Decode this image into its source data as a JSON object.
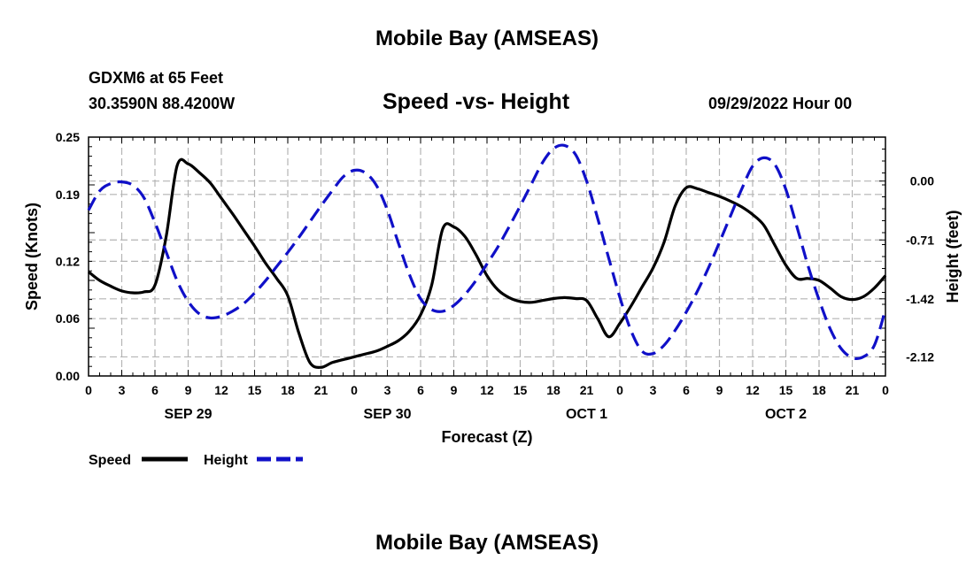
{
  "page": {
    "title": "Mobile Bay (AMSEAS)",
    "title_repeat": "Mobile Bay (AMSEAS)",
    "station": "GDXM6 at 65 Feet",
    "coordinates": "30.3590N  88.4200W",
    "subtitle": "Speed -vs- Height",
    "datetime": "09/29/2022 Hour 00"
  },
  "colors": {
    "speed": "#000000",
    "height": "#1010c8",
    "grid": "#b4b4b4"
  },
  "chart_data": {
    "type": "line",
    "xlabel": "Forecast (Z)",
    "ylabel": "Speed (Knots)",
    "y2label": "Height (feet)",
    "xlim": [
      0,
      72
    ],
    "ylim": [
      0,
      0.25
    ],
    "y2lim": [
      -2.35,
      0.53
    ],
    "x_ticks": [
      0,
      3,
      6,
      9,
      12,
      15,
      18,
      21,
      24,
      27,
      30,
      33,
      36,
      39,
      42,
      45,
      48,
      51,
      54,
      57,
      60,
      63,
      66,
      69,
      72
    ],
    "x_tick_labels": [
      "0",
      "3",
      "6",
      "9",
      "12",
      "15",
      "18",
      "21",
      "0",
      "3",
      "6",
      "9",
      "12",
      "15",
      "18",
      "21",
      "0",
      "3",
      "6",
      "9",
      "12",
      "15",
      "18",
      "21",
      "0"
    ],
    "date_labels": [
      {
        "x": 9,
        "label": "SEP 29"
      },
      {
        "x": 27,
        "label": "SEP 30"
      },
      {
        "x": 45,
        "label": "OCT 1"
      },
      {
        "x": 63,
        "label": "OCT 2"
      }
    ],
    "y_ticks": [
      0.0,
      0.06,
      0.12,
      0.19,
      0.25
    ],
    "y_tick_labels": [
      "0.00",
      "0.06",
      "0.12",
      "0.19",
      "0.25"
    ],
    "y2_ticks": [
      0.0,
      -0.71,
      -1.42,
      -2.12
    ],
    "y2_tick_labels": [
      "0.00",
      "-0.71",
      "-1.42",
      "-2.12"
    ],
    "grid": true,
    "legend": [
      {
        "name": "Speed",
        "style": "solid"
      },
      {
        "name": "Height",
        "style": "dashed"
      }
    ],
    "series": [
      {
        "name": "Speed",
        "axis": "left",
        "style": "solid",
        "x": [
          0,
          1,
          2,
          3,
          4,
          5,
          6,
          7,
          8,
          9,
          10,
          11,
          12,
          13,
          14,
          15,
          16,
          17,
          18,
          19,
          20,
          21,
          22,
          23,
          24,
          25,
          26,
          27,
          28,
          29,
          30,
          31,
          32,
          33,
          34,
          35,
          36,
          37,
          38,
          39,
          40,
          41,
          42,
          43,
          44,
          45,
          46,
          47,
          48,
          49,
          50,
          51,
          52,
          53,
          54,
          55,
          56,
          57,
          58,
          59,
          60,
          61,
          62,
          63,
          64,
          65,
          66,
          67,
          68,
          69,
          70,
          71,
          72
        ],
        "values": [
          0.109,
          0.1,
          0.094,
          0.089,
          0.087,
          0.088,
          0.095,
          0.145,
          0.22,
          0.222,
          0.213,
          0.202,
          0.186,
          0.17,
          0.153,
          0.136,
          0.118,
          0.102,
          0.084,
          0.045,
          0.014,
          0.009,
          0.014,
          0.017,
          0.02,
          0.023,
          0.026,
          0.031,
          0.037,
          0.047,
          0.064,
          0.095,
          0.154,
          0.156,
          0.146,
          0.127,
          0.105,
          0.09,
          0.082,
          0.078,
          0.077,
          0.079,
          0.081,
          0.082,
          0.081,
          0.079,
          0.06,
          0.041,
          0.055,
          0.073,
          0.093,
          0.113,
          0.14,
          0.178,
          0.197,
          0.196,
          0.192,
          0.188,
          0.183,
          0.177,
          0.169,
          0.158,
          0.137,
          0.116,
          0.102,
          0.102,
          0.1,
          0.092,
          0.083,
          0.08,
          0.083,
          0.092,
          0.105
        ]
      },
      {
        "name": "Height",
        "axis": "right",
        "style": "dashed",
        "x": [
          0,
          1,
          2,
          3,
          4,
          5,
          6,
          7,
          8,
          9,
          10,
          11,
          12,
          13,
          14,
          15,
          16,
          17,
          18,
          19,
          20,
          21,
          22,
          23,
          24,
          25,
          26,
          27,
          28,
          29,
          30,
          31,
          32,
          33,
          34,
          35,
          36,
          37,
          38,
          39,
          40,
          41,
          42,
          43,
          44,
          45,
          46,
          47,
          48,
          49,
          50,
          51,
          52,
          53,
          54,
          55,
          56,
          57,
          58,
          59,
          60,
          61,
          62,
          63,
          64,
          65,
          66,
          67,
          68,
          69,
          70,
          71,
          72
        ],
        "values": [
          -0.35,
          -0.12,
          -0.03,
          -0.01,
          -0.05,
          -0.2,
          -0.5,
          -0.85,
          -1.2,
          -1.45,
          -1.6,
          -1.65,
          -1.63,
          -1.57,
          -1.48,
          -1.35,
          -1.2,
          -1.03,
          -0.86,
          -0.68,
          -0.49,
          -0.3,
          -0.12,
          0.05,
          0.13,
          0.1,
          -0.05,
          -0.35,
          -0.75,
          -1.13,
          -1.42,
          -1.55,
          -1.57,
          -1.5,
          -1.37,
          -1.2,
          -1.0,
          -0.79,
          -0.55,
          -0.3,
          -0.04,
          0.22,
          0.39,
          0.43,
          0.32,
          0.0,
          -0.45,
          -0.93,
          -1.4,
          -1.8,
          -2.05,
          -2.08,
          -1.98,
          -1.8,
          -1.58,
          -1.33,
          -1.05,
          -0.74,
          -0.42,
          -0.1,
          0.18,
          0.28,
          0.2,
          -0.1,
          -0.55,
          -1.02,
          -1.43,
          -1.78,
          -2.02,
          -2.13,
          -2.12,
          -1.98,
          -1.55
        ]
      }
    ]
  }
}
